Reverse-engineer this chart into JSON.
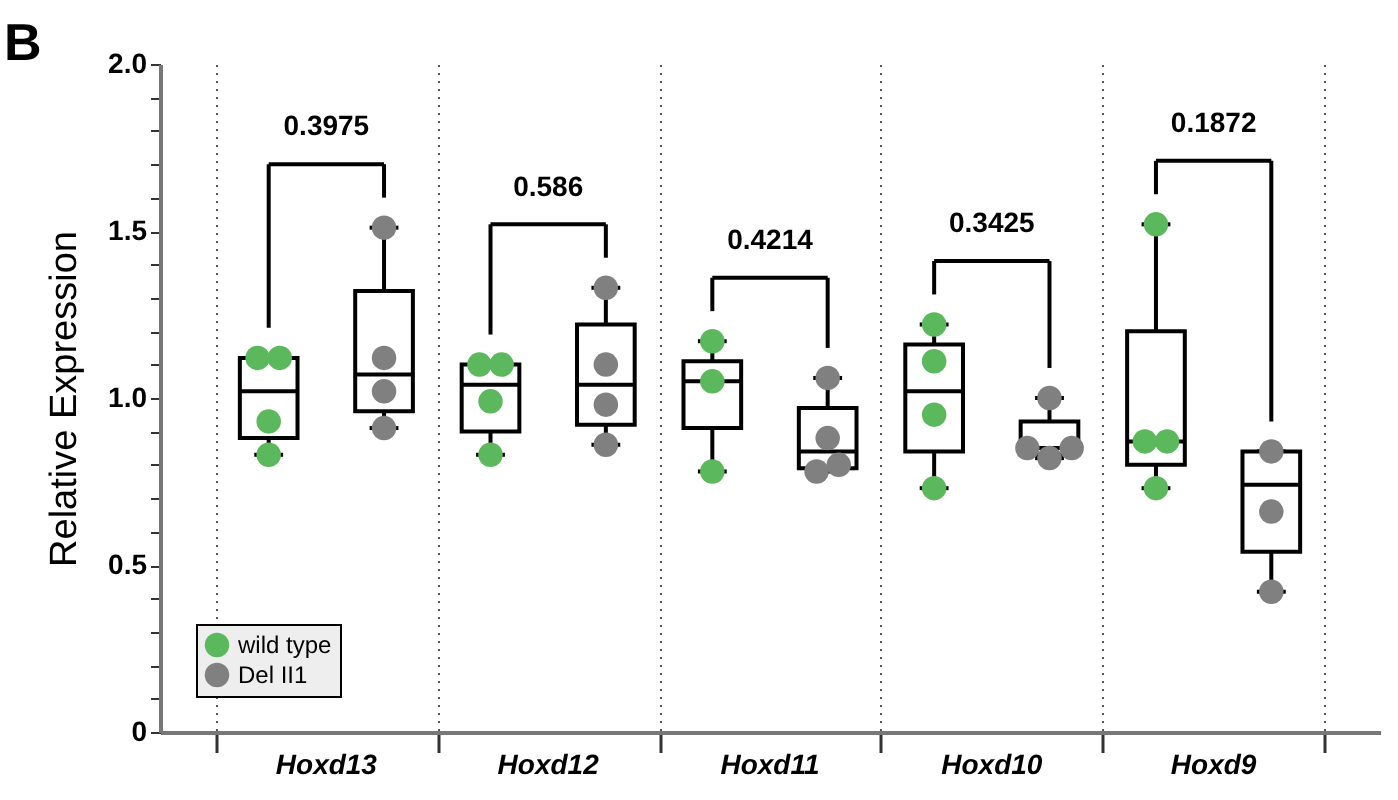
{
  "chart_data": {
    "type": "box",
    "title": "B",
    "ylabel": "Relative Expression",
    "categories": [
      "Hoxd13",
      "Hoxd12",
      "Hoxd11",
      "Hoxd10",
      "Hoxd9"
    ],
    "ylim": [
      0,
      2
    ],
    "yticks": [
      0,
      {
        "value": 0.1,
        "label": null
      },
      {
        "value": 0.2,
        "label": null
      },
      {
        "value": 0.3,
        "label": null
      },
      {
        "value": 0.4,
        "label": null
      },
      0.5,
      {
        "value": 0.6,
        "label": null
      },
      {
        "value": 0.7,
        "label": null
      },
      {
        "value": 0.8,
        "label": null
      },
      {
        "value": 0.9,
        "label": null
      },
      {
        "value": 1,
        "label": "1.0"
      },
      {
        "value": 1.1,
        "label": null
      },
      {
        "value": 1.2,
        "label": null
      },
      {
        "value": 1.3,
        "label": null
      },
      {
        "value": 1.4,
        "label": null
      },
      1.5,
      {
        "value": 1.6,
        "label": null
      },
      {
        "value": 1.7,
        "label": null
      },
      {
        "value": 1.8,
        "label": null
      },
      {
        "value": 1.9,
        "label": null
      },
      {
        "value": 2,
        "label": "2.0"
      }
    ],
    "grid": "x",
    "legend": "bottom left",
    "annotations": [
      "0.3975",
      "0.586",
      "0.4214",
      "0.3425",
      "0.1872"
    ],
    "series": [
      {
        "color": "#000000",
        "boxes": [
          {
            "low": 0.83,
            "q1": 0.88,
            "median": 1.02,
            "q3": 1.12,
            "high": 1.12
          },
          {
            "low": 0.83,
            "q1": 0.9,
            "median": 1.04,
            "q3": 1.1,
            "high": 1.1
          },
          {
            "low": 0.78,
            "q1": 0.91,
            "median": 1.05,
            "q3": 1.11,
            "high": 1.17
          },
          {
            "low": 0.73,
            "q1": 0.84,
            "median": 1.02,
            "q3": 1.16,
            "high": 1.22
          },
          {
            "low": 0.73,
            "q1": 0.8,
            "median": 0.87,
            "q3": 1.2,
            "high": 1.52
          }
        ]
      },
      {
        "color": "#000000",
        "boxes": [
          {
            "low": 0.91,
            "q1": 0.96,
            "median": 1.07,
            "q3": 1.32,
            "high": 1.51
          },
          {
            "low": 0.86,
            "q1": 0.92,
            "median": 1.04,
            "q3": 1.22,
            "high": 1.33
          },
          {
            "low": 0.78,
            "q1": 0.79,
            "median": 0.84,
            "q3": 0.97,
            "high": 1.06
          },
          {
            "low": 0.82,
            "q1": 0.83,
            "median": 0.85,
            "q3": 0.93,
            "high": 1.0
          },
          {
            "low": 0.42,
            "q1": 0.54,
            "median": 0.74,
            "q3": 0.84,
            "high": 0.84
          }
        ]
      },
      {
        "type": "scatter",
        "name": "wild type",
        "color": "#5cb85c",
        "x": [
          "Hoxd13",
          "Hoxd13",
          "Hoxd13",
          "Hoxd13",
          "Hoxd12",
          "Hoxd12",
          "Hoxd12",
          "Hoxd12",
          "Hoxd11",
          "Hoxd11",
          "Hoxd11",
          "Hoxd10",
          "Hoxd10",
          "Hoxd10",
          "Hoxd10",
          "Hoxd9",
          "Hoxd9",
          "Hoxd9",
          "Hoxd9"
        ],
        "values": [
          1.12,
          1.12,
          0.93,
          0.83,
          1.1,
          1.1,
          0.99,
          0.83,
          1.17,
          1.05,
          0.78,
          1.22,
          1.11,
          0.95,
          0.73,
          1.52,
          0.87,
          0.87,
          0.73
        ]
      },
      {
        "type": "scatter",
        "name": "Del II1",
        "color": "#808080",
        "x": [
          "Hoxd13",
          "Hoxd13",
          "Hoxd13",
          "Hoxd13",
          "Hoxd12",
          "Hoxd12",
          "Hoxd12",
          "Hoxd12",
          "Hoxd11",
          "Hoxd11",
          "Hoxd11",
          "Hoxd11",
          "Hoxd10",
          "Hoxd10",
          "Hoxd10",
          "Hoxd10",
          "Hoxd9",
          "Hoxd9",
          "Hoxd9"
        ],
        "values": [
          1.51,
          1.12,
          1.02,
          0.91,
          1.33,
          1.1,
          0.98,
          0.86,
          1.06,
          0.88,
          0.78,
          0.8,
          1.0,
          0.85,
          0.82,
          0.85,
          0.84,
          0.66,
          0.42
        ]
      }
    ]
  }
}
